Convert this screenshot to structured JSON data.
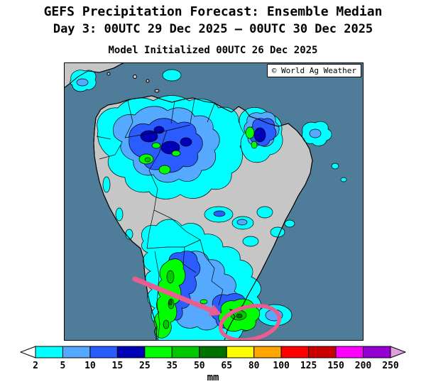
{
  "header": {
    "title": "GEFS Precipitation Forecast: Ensemble Median",
    "subtitle": "Day 3: 00UTC 29 Dec 2025 — 00UTC 30 Dec 2025",
    "init_line": "Model Initialized 00UTC 26 Dec 2025"
  },
  "map": {
    "copyright": "© World Ag Weather",
    "ocean_color": "#4E7C99",
    "land_color": "#C6C6C6",
    "annotation_color": "#ED5C8F"
  },
  "legend": {
    "unit": "mm",
    "values": [
      2,
      5,
      10,
      15,
      25,
      35,
      50,
      65,
      80,
      100,
      125,
      150,
      200,
      250
    ],
    "colors": [
      "#00FFFF",
      "#55AAFF",
      "#2B5CFF",
      "#0000B9",
      "#00FF00",
      "#00C800",
      "#007000",
      "#FFFF00",
      "#FFA500",
      "#FF0000",
      "#C80000",
      "#FF00FF",
      "#9400D3"
    ],
    "under_color": "#FFFFFF",
    "over_color": "#DDA0DD"
  }
}
